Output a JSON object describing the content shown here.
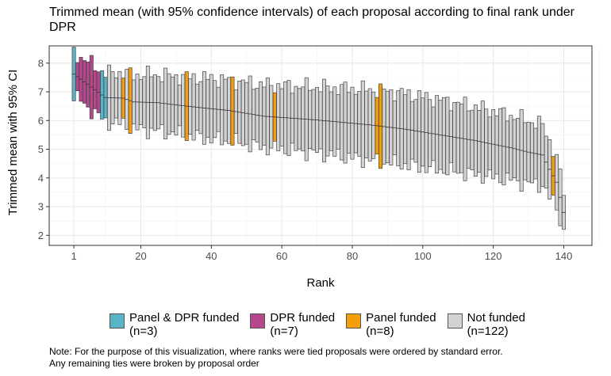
{
  "title": "Trimmed mean (with 95% confidence intervals) of each proposal according to final rank under DPR",
  "note_line1": "Note: For the purpose of this visualization, where ranks were tied proposals were ordered by standard error.",
  "note_line2": "Any remaining ties were broken by proposal order",
  "legend": [
    {
      "label": "Panel & DPR funded",
      "count": "(n=3)",
      "color": "#5ab4c8"
    },
    {
      "label": "DPR funded",
      "count": "(n=7)",
      "color": "#b5478c"
    },
    {
      "label": "Panel funded",
      "count": "(n=8)",
      "color": "#f59e0b"
    },
    {
      "label": "Not funded",
      "count": "(n=122)",
      "color": "#d3d3d3"
    }
  ],
  "chart_data": {
    "type": "bar",
    "title": "Trimmed mean (with 95% confidence intervals) of each proposal according to final rank under DPR",
    "xlabel": "Rank",
    "ylabel": "Trimmed mean with 95% CI",
    "xlim": [
      -6,
      148
    ],
    "ylim": [
      1.65,
      8.6
    ],
    "x_ticks": [
      1,
      20,
      40,
      60,
      80,
      100,
      120,
      140
    ],
    "y_ticks": [
      2,
      3,
      4,
      5,
      6,
      7,
      8
    ],
    "grid": true,
    "legend_position": "bottom",
    "mean_anchors": [
      [
        1,
        7.62
      ],
      [
        10,
        6.8
      ],
      [
        15,
        6.78
      ],
      [
        18,
        6.65
      ],
      [
        25,
        6.62
      ],
      [
        33,
        6.5
      ],
      [
        45,
        6.35
      ],
      [
        55,
        6.15
      ],
      [
        70,
        6.02
      ],
      [
        85,
        5.85
      ],
      [
        95,
        5.7
      ],
      [
        105,
        5.5
      ],
      [
        115,
        5.3
      ],
      [
        125,
        5.05
      ],
      [
        130,
        4.9
      ],
      [
        134,
        4.8
      ],
      [
        136,
        4.3
      ],
      [
        138,
        3.85
      ],
      [
        140,
        2.8
      ]
    ],
    "half_width_anchors": [
      [
        1,
        0.75
      ],
      [
        20,
        0.95
      ],
      [
        40,
        1.05
      ],
      [
        60,
        1.1
      ],
      [
        90,
        1.25
      ],
      [
        110,
        1.2
      ],
      [
        130,
        1.1
      ],
      [
        136,
        1.0
      ],
      [
        140,
        0.7
      ]
    ],
    "funded_groups": [
      {
        "name": "Panel & DPR funded",
        "ranks": [
          1,
          9,
          10
        ]
      },
      {
        "name": "DPR funded",
        "ranks": [
          3,
          4,
          5,
          6,
          7,
          8,
          2
        ]
      },
      {
        "name": "Panel funded",
        "ranks": [
          15,
          17,
          33,
          46,
          58,
          87,
          88,
          137
        ]
      }
    ],
    "n_proposals": 140,
    "default_group": "Not funded"
  }
}
